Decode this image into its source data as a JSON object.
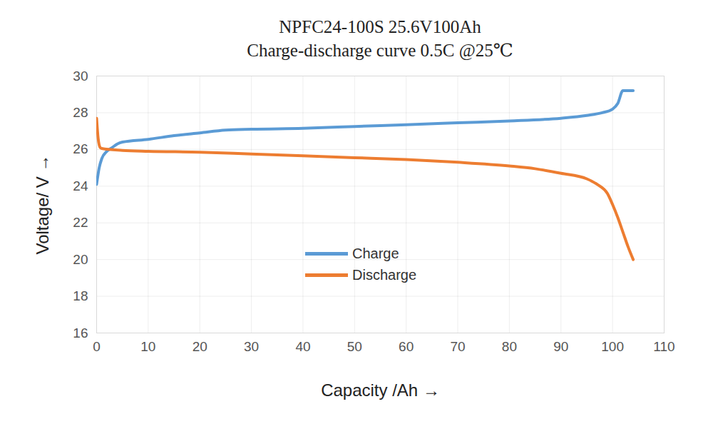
{
  "chart_data": {
    "type": "line",
    "title": "NPFC24-100S  25.6V100Ah",
    "subtitle": "Charge-discharge curve   0.5C @25℃",
    "xlabel": "Capacity /Ah",
    "ylabel": "Voltage/ V",
    "xlim": [
      0,
      110
    ],
    "xticks": [
      0,
      10,
      20,
      30,
      40,
      50,
      60,
      70,
      80,
      90,
      100,
      110
    ],
    "ylim": [
      16,
      30
    ],
    "yticks": [
      16,
      18,
      20,
      22,
      24,
      26,
      28,
      30
    ],
    "grid": true,
    "legend": "center",
    "series": [
      {
        "name": "Charge",
        "color": "#5b9bd5",
        "x": [
          0,
          0.5,
          1,
          2,
          3,
          4,
          5,
          10,
          15,
          20,
          25,
          30,
          40,
          50,
          60,
          70,
          80,
          90,
          95,
          98,
          100,
          101,
          102,
          104
        ],
        "values": [
          24.1,
          25.0,
          25.5,
          25.9,
          26.1,
          26.3,
          26.4,
          26.55,
          26.75,
          26.9,
          27.05,
          27.1,
          27.15,
          27.25,
          27.35,
          27.45,
          27.55,
          27.7,
          27.85,
          28.0,
          28.2,
          28.5,
          29.2,
          29.2
        ]
      },
      {
        "name": "Discharge",
        "color": "#ed7d31",
        "x": [
          0,
          0.3,
          0.7,
          1,
          5,
          10,
          20,
          30,
          40,
          50,
          60,
          70,
          80,
          85,
          90,
          95,
          97,
          99,
          100,
          101,
          102,
          103,
          104
        ],
        "values": [
          27.7,
          26.6,
          26.1,
          26.05,
          25.95,
          25.9,
          25.85,
          25.75,
          25.65,
          25.55,
          25.45,
          25.3,
          25.1,
          24.95,
          24.7,
          24.4,
          24.1,
          23.6,
          23.0,
          22.3,
          21.5,
          20.7,
          20.0
        ]
      }
    ]
  }
}
